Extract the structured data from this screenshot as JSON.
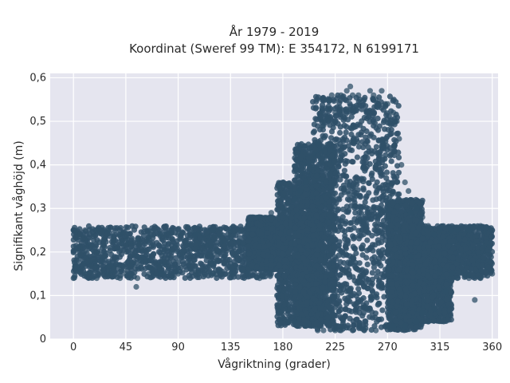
{
  "chart_data": {
    "type": "scatter",
    "title": "År 1979 - 2019",
    "subtitle": "Koordinat (Sweref 99 TM): E 354172, N 6199171",
    "xlabel": "Vågriktning (grader)",
    "ylabel": "Signifikant våghöjd (m)",
    "xlim": [
      -20,
      365
    ],
    "ylim": [
      0,
      0.61
    ],
    "x_ticks": [
      0,
      45,
      90,
      135,
      180,
      225,
      270,
      315,
      360
    ],
    "x_tick_labels": [
      "0",
      "45",
      "90",
      "135",
      "180",
      "225",
      "270",
      "315",
      "360"
    ],
    "y_ticks": [
      0,
      0.1,
      0.2,
      0.3,
      0.4,
      0.5,
      0.6
    ],
    "y_tick_labels": [
      "0",
      "0,1",
      "0,2",
      "0,3",
      "0,4",
      "0,5",
      "0,6"
    ],
    "grid": true,
    "marker_color": "#2f5068",
    "plot_background": "#e5e5ef",
    "series": [
      {
        "points": [
          [
            0,
            0.14
          ],
          [
            0,
            0.25
          ],
          [
            10,
            0.15
          ],
          [
            10,
            0.25
          ],
          [
            20,
            0.14
          ],
          [
            20,
            0.25
          ],
          [
            30,
            0.15
          ],
          [
            30,
            0.25
          ],
          [
            40,
            0.14
          ],
          [
            40,
            0.24
          ],
          [
            45,
            0.15
          ],
          [
            45,
            0.23
          ],
          [
            55,
            0.14
          ],
          [
            55,
            0.23
          ],
          [
            54,
            0.12
          ],
          [
            65,
            0.15
          ],
          [
            65,
            0.23
          ],
          [
            75,
            0.15
          ],
          [
            75,
            0.24
          ],
          [
            90,
            0.15
          ],
          [
            90,
            0.24
          ],
          [
            105,
            0.15
          ],
          [
            105,
            0.24
          ],
          [
            120,
            0.15
          ],
          [
            120,
            0.25
          ],
          [
            135,
            0.15
          ],
          [
            135,
            0.25
          ],
          [
            150,
            0.15
          ],
          [
            150,
            0.26
          ],
          [
            160,
            0.14
          ],
          [
            160,
            0.28
          ],
          [
            170,
            0.15
          ],
          [
            170,
            0.29
          ],
          [
            175,
            0.1
          ],
          [
            178,
            0.06
          ],
          [
            180,
            0.05
          ],
          [
            180,
            0.3
          ],
          [
            185,
            0.04
          ],
          [
            190,
            0.04
          ],
          [
            190,
            0.32
          ],
          [
            195,
            0.34
          ],
          [
            200,
            0.03
          ],
          [
            200,
            0.36
          ],
          [
            205,
            0.4
          ],
          [
            210,
            0.02
          ],
          [
            210,
            0.45
          ],
          [
            215,
            0.02
          ],
          [
            215,
            0.49
          ],
          [
            220,
            0.55
          ],
          [
            222,
            0.56
          ],
          [
            225,
            0.02
          ],
          [
            225,
            0.52
          ],
          [
            230,
            0.02
          ],
          [
            230,
            0.56
          ],
          [
            235,
            0.57
          ],
          [
            238,
            0.58
          ],
          [
            240,
            0.02
          ],
          [
            240,
            0.56
          ],
          [
            245,
            0.56
          ],
          [
            250,
            0.02
          ],
          [
            250,
            0.55
          ],
          [
            255,
            0.57
          ],
          [
            258,
            0.56
          ],
          [
            260,
            0.02
          ],
          [
            260,
            0.55
          ],
          [
            265,
            0.57
          ],
          [
            268,
            0.54
          ],
          [
            270,
            0.03
          ],
          [
            270,
            0.54
          ],
          [
            275,
            0.03
          ],
          [
            275,
            0.52
          ],
          [
            278,
            0.5
          ],
          [
            280,
            0.46
          ],
          [
            282,
            0.4
          ],
          [
            285,
            0.03
          ],
          [
            285,
            0.36
          ],
          [
            288,
            0.34
          ],
          [
            290,
            0.29
          ],
          [
            290,
            0.19
          ],
          [
            295,
            0.04
          ],
          [
            295,
            0.3
          ],
          [
            300,
            0.28
          ],
          [
            300,
            0.06
          ],
          [
            305,
            0.04
          ],
          [
            305,
            0.26
          ],
          [
            310,
            0.07
          ],
          [
            310,
            0.24
          ],
          [
            315,
            0.25
          ],
          [
            315,
            0.16
          ],
          [
            320,
            0.11
          ],
          [
            325,
            0.25
          ],
          [
            325,
            0.15
          ],
          [
            330,
            0.14
          ],
          [
            330,
            0.25
          ],
          [
            340,
            0.14
          ],
          [
            340,
            0.25
          ],
          [
            345,
            0.09
          ],
          [
            350,
            0.14
          ],
          [
            350,
            0.26
          ],
          [
            360,
            0.15
          ],
          [
            360,
            0.25
          ]
        ],
        "clusters": [
          {
            "x": [
              0,
              170
            ],
            "y": [
              0.14,
              0.26
            ]
          },
          {
            "x": [
              150,
              185
            ],
            "y": [
              0.16,
              0.28
            ]
          },
          {
            "x": [
              175,
              215
            ],
            "y": [
              0.03,
              0.36
            ]
          },
          {
            "x": [
              190,
              225
            ],
            "y": [
              0.03,
              0.45
            ]
          },
          {
            "x": [
              205,
              280
            ],
            "y": [
              0.02,
              0.56
            ]
          },
          {
            "x": [
              270,
              300
            ],
            "y": [
              0.02,
              0.32
            ]
          },
          {
            "x": [
              285,
              325
            ],
            "y": [
              0.04,
              0.24
            ]
          },
          {
            "x": [
              290,
              360
            ],
            "y": [
              0.14,
              0.26
            ]
          }
        ]
      }
    ]
  }
}
